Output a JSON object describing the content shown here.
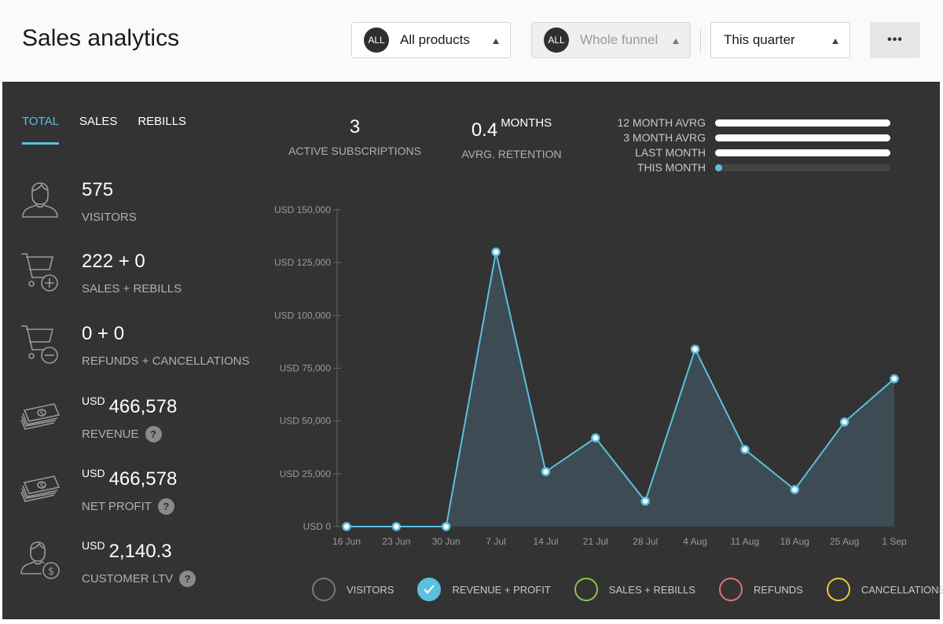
{
  "header": {
    "title": "Sales analytics",
    "products_filter": {
      "badge": "ALL",
      "value": "All products"
    },
    "funnel_filter": {
      "badge": "ALL",
      "value": "Whole funnel"
    },
    "period_filter": {
      "value": "This quarter"
    },
    "more_label": "•••"
  },
  "tabs": [
    {
      "label": "TOTAL",
      "active": true
    },
    {
      "label": "SALES",
      "active": false
    },
    {
      "label": "REBILLS",
      "active": false
    }
  ],
  "metrics": {
    "visitors": {
      "value": "575",
      "label": "VISITORS"
    },
    "sales_rebills": {
      "value": "222 + 0",
      "label": "SALES + REBILLS"
    },
    "refunds_cancellations": {
      "value": "0 + 0",
      "label": "REFUNDS + CANCELLATIONS"
    },
    "revenue": {
      "currency": "USD",
      "value": "466,578",
      "label": "REVENUE",
      "help": "?"
    },
    "net_profit": {
      "currency": "USD",
      "value": "466,578",
      "label": "NET PROFIT",
      "help": "?"
    },
    "customer_ltv": {
      "currency": "USD",
      "value": "2,140.3",
      "label": "CUSTOMER LTV",
      "help": "?"
    }
  },
  "kpis": {
    "active_subscriptions": {
      "value": "3",
      "label": "ACTIVE SUBSCRIPTIONS"
    },
    "avrg_retention": {
      "value": "0.4",
      "unit": "MONTHS",
      "label": "AVRG. RETENTION"
    }
  },
  "retention_bars": [
    {
      "label": "12 MONTH AVRG",
      "fraction": 1.0
    },
    {
      "label": "3 MONTH AVRG",
      "fraction": 1.0
    },
    {
      "label": "LAST MONTH",
      "fraction": 1.0
    },
    {
      "label": "THIS MONTH",
      "fraction": 0.04
    }
  ],
  "chart_data": {
    "type": "area",
    "title": "",
    "xlabel": "",
    "ylabel": "",
    "categories": [
      "16 Jun",
      "23 Jun",
      "30 Jun",
      "7 Jul",
      "14 Jul",
      "21 Jul",
      "28 Jul",
      "4 Aug",
      "11 Aug",
      "18 Aug",
      "25 Aug",
      "1 Sep"
    ],
    "series": [
      {
        "name": "REVENUE + PROFIT",
        "values": [
          0,
          0,
          0,
          130000,
          26000,
          42000,
          12000,
          84000,
          36500,
          17500,
          49500,
          70000
        ]
      }
    ],
    "ylim": [
      0,
      150000
    ],
    "yticks": [
      0,
      25000,
      50000,
      75000,
      100000,
      125000,
      150000
    ],
    "ytick_labels": [
      "USD 0",
      "USD 25,000",
      "USD 50,000",
      "USD 75,000",
      "USD 100,000",
      "USD 125,000",
      "USD 150,000"
    ],
    "grid": false,
    "colors": {
      "line": "#5bc0de",
      "fill": "#3d4b55",
      "axis": "#666666",
      "tick_text": "#9a9a9a"
    }
  },
  "legend": [
    {
      "label": "VISITORS",
      "checked": false,
      "color": "#777777"
    },
    {
      "label": "REVENUE + PROFIT",
      "checked": true,
      "color": "#5bc0de"
    },
    {
      "label": "SALES + REBILLS",
      "checked": false,
      "color": "#8bc34a"
    },
    {
      "label": "REFUNDS",
      "checked": false,
      "color": "#e57373"
    },
    {
      "label": "CANCELLATIONS",
      "checked": false,
      "color": "#f0c43c"
    }
  ]
}
